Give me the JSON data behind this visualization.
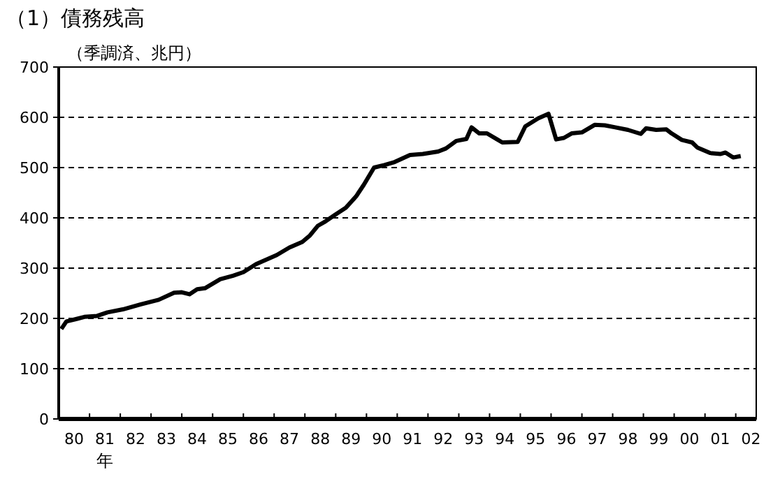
{
  "chart_data": {
    "type": "line",
    "title": "（1）債務残高",
    "ylabel": "（季調済、兆円）",
    "xlabel": "年",
    "x": [
      "1980-02",
      "1980-04",
      "1980-08",
      "1980-11",
      "1981-04",
      "1981-08",
      "1982-02",
      "1982-09",
      "1983-04",
      "1983-10",
      "1984-01",
      "1984-04",
      "1984-07",
      "1984-10",
      "1985-04",
      "1985-09",
      "1986-01",
      "1986-06",
      "1987-02",
      "1987-07",
      "1987-12",
      "1988-03",
      "1988-06",
      "1988-09",
      "1989-01",
      "1989-05",
      "1989-09",
      "1989-12",
      "1990-04",
      "1990-08",
      "1990-12",
      "1991-06",
      "1991-11",
      "1992-05",
      "1992-08",
      "1992-12",
      "1993-04",
      "1993-06",
      "1993-09",
      "1993-12",
      "1994-04",
      "1994-06",
      "1994-12",
      "1995-03",
      "1995-08",
      "1995-12",
      "1996-03",
      "1996-06",
      "1996-09",
      "1997-01",
      "1997-06",
      "1997-10",
      "1998-02",
      "1998-07",
      "1998-12",
      "1999-02",
      "1999-06",
      "1999-10",
      "1999-12",
      "2000-04",
      "2000-08",
      "2000-10",
      "2001-03",
      "2001-07",
      "2001-09",
      "2001-12",
      "2002-03"
    ],
    "series": [
      {
        "color": "#000000",
        "values": [
          179,
          194,
          199,
          203,
          205,
          212,
          218,
          228,
          237,
          251,
          252,
          248,
          258,
          260,
          278,
          285,
          292,
          308,
          326,
          341,
          352,
          365,
          384,
          393,
          407,
          420,
          443,
          466,
          500,
          505,
          511,
          525,
          527,
          532,
          538,
          553,
          557,
          580,
          568,
          568,
          556,
          550,
          551,
          582,
          598,
          607,
          556,
          559,
          568,
          570,
          585,
          584,
          580,
          575,
          567,
          578,
          575,
          576,
          568,
          555,
          550,
          540,
          529,
          527,
          530,
          520,
          523
        ]
      }
    ],
    "xlim": [
      "1980-01",
      "2002-09"
    ],
    "xticks": [
      {
        "value": "1980-07",
        "label": "80"
      },
      {
        "value": "1981-07",
        "label": "81"
      },
      {
        "value": "1982-07",
        "label": "82"
      },
      {
        "value": "1983-07",
        "label": "83"
      },
      {
        "value": "1984-07",
        "label": "84"
      },
      {
        "value": "1985-07",
        "label": "85"
      },
      {
        "value": "1986-07",
        "label": "86"
      },
      {
        "value": "1987-07",
        "label": "87"
      },
      {
        "value": "1988-07",
        "label": "88"
      },
      {
        "value": "1989-07",
        "label": "89"
      },
      {
        "value": "1990-07",
        "label": "90"
      },
      {
        "value": "1991-07",
        "label": "91"
      },
      {
        "value": "1992-07",
        "label": "92"
      },
      {
        "value": "1993-07",
        "label": "93"
      },
      {
        "value": "1994-07",
        "label": "94"
      },
      {
        "value": "1995-07",
        "label": "95"
      },
      {
        "value": "1996-07",
        "label": "96"
      },
      {
        "value": "1997-07",
        "label": "97"
      },
      {
        "value": "1998-07",
        "label": "98"
      },
      {
        "value": "1999-07",
        "label": "99"
      },
      {
        "value": "2000-07",
        "label": "00"
      },
      {
        "value": "2001-07",
        "label": "01"
      },
      {
        "value": "2002-07",
        "label": "02"
      },
      {
        "value": "1981-01",
        "label": null
      },
      {
        "value": "1982-01",
        "label": null
      },
      {
        "value": "1983-01",
        "label": null
      },
      {
        "value": "1984-01",
        "label": null
      },
      {
        "value": "1985-01",
        "label": null
      },
      {
        "value": "1986-01",
        "label": null
      },
      {
        "value": "1987-01",
        "label": null
      },
      {
        "value": "1988-01",
        "label": null
      },
      {
        "value": "1989-01",
        "label": null
      },
      {
        "value": "1990-01",
        "label": null
      },
      {
        "value": "1991-01",
        "label": null
      },
      {
        "value": "1992-01",
        "label": null
      },
      {
        "value": "1993-01",
        "label": null
      },
      {
        "value": "1994-01",
        "label": null
      },
      {
        "value": "1995-01",
        "label": null
      },
      {
        "value": "1996-01",
        "label": null
      },
      {
        "value": "1997-01",
        "label": null
      },
      {
        "value": "1998-01",
        "label": null
      },
      {
        "value": "1999-01",
        "label": null
      },
      {
        "value": "2000-01",
        "label": null
      },
      {
        "value": "2001-01",
        "label": null
      },
      {
        "value": "2002-01",
        "label": null
      }
    ],
    "ylim": [
      0,
      700
    ],
    "yticks": [
      0,
      100,
      200,
      300,
      400,
      500,
      600,
      700
    ],
    "grid": "y",
    "marker": "none",
    "line_style": "solid"
  }
}
